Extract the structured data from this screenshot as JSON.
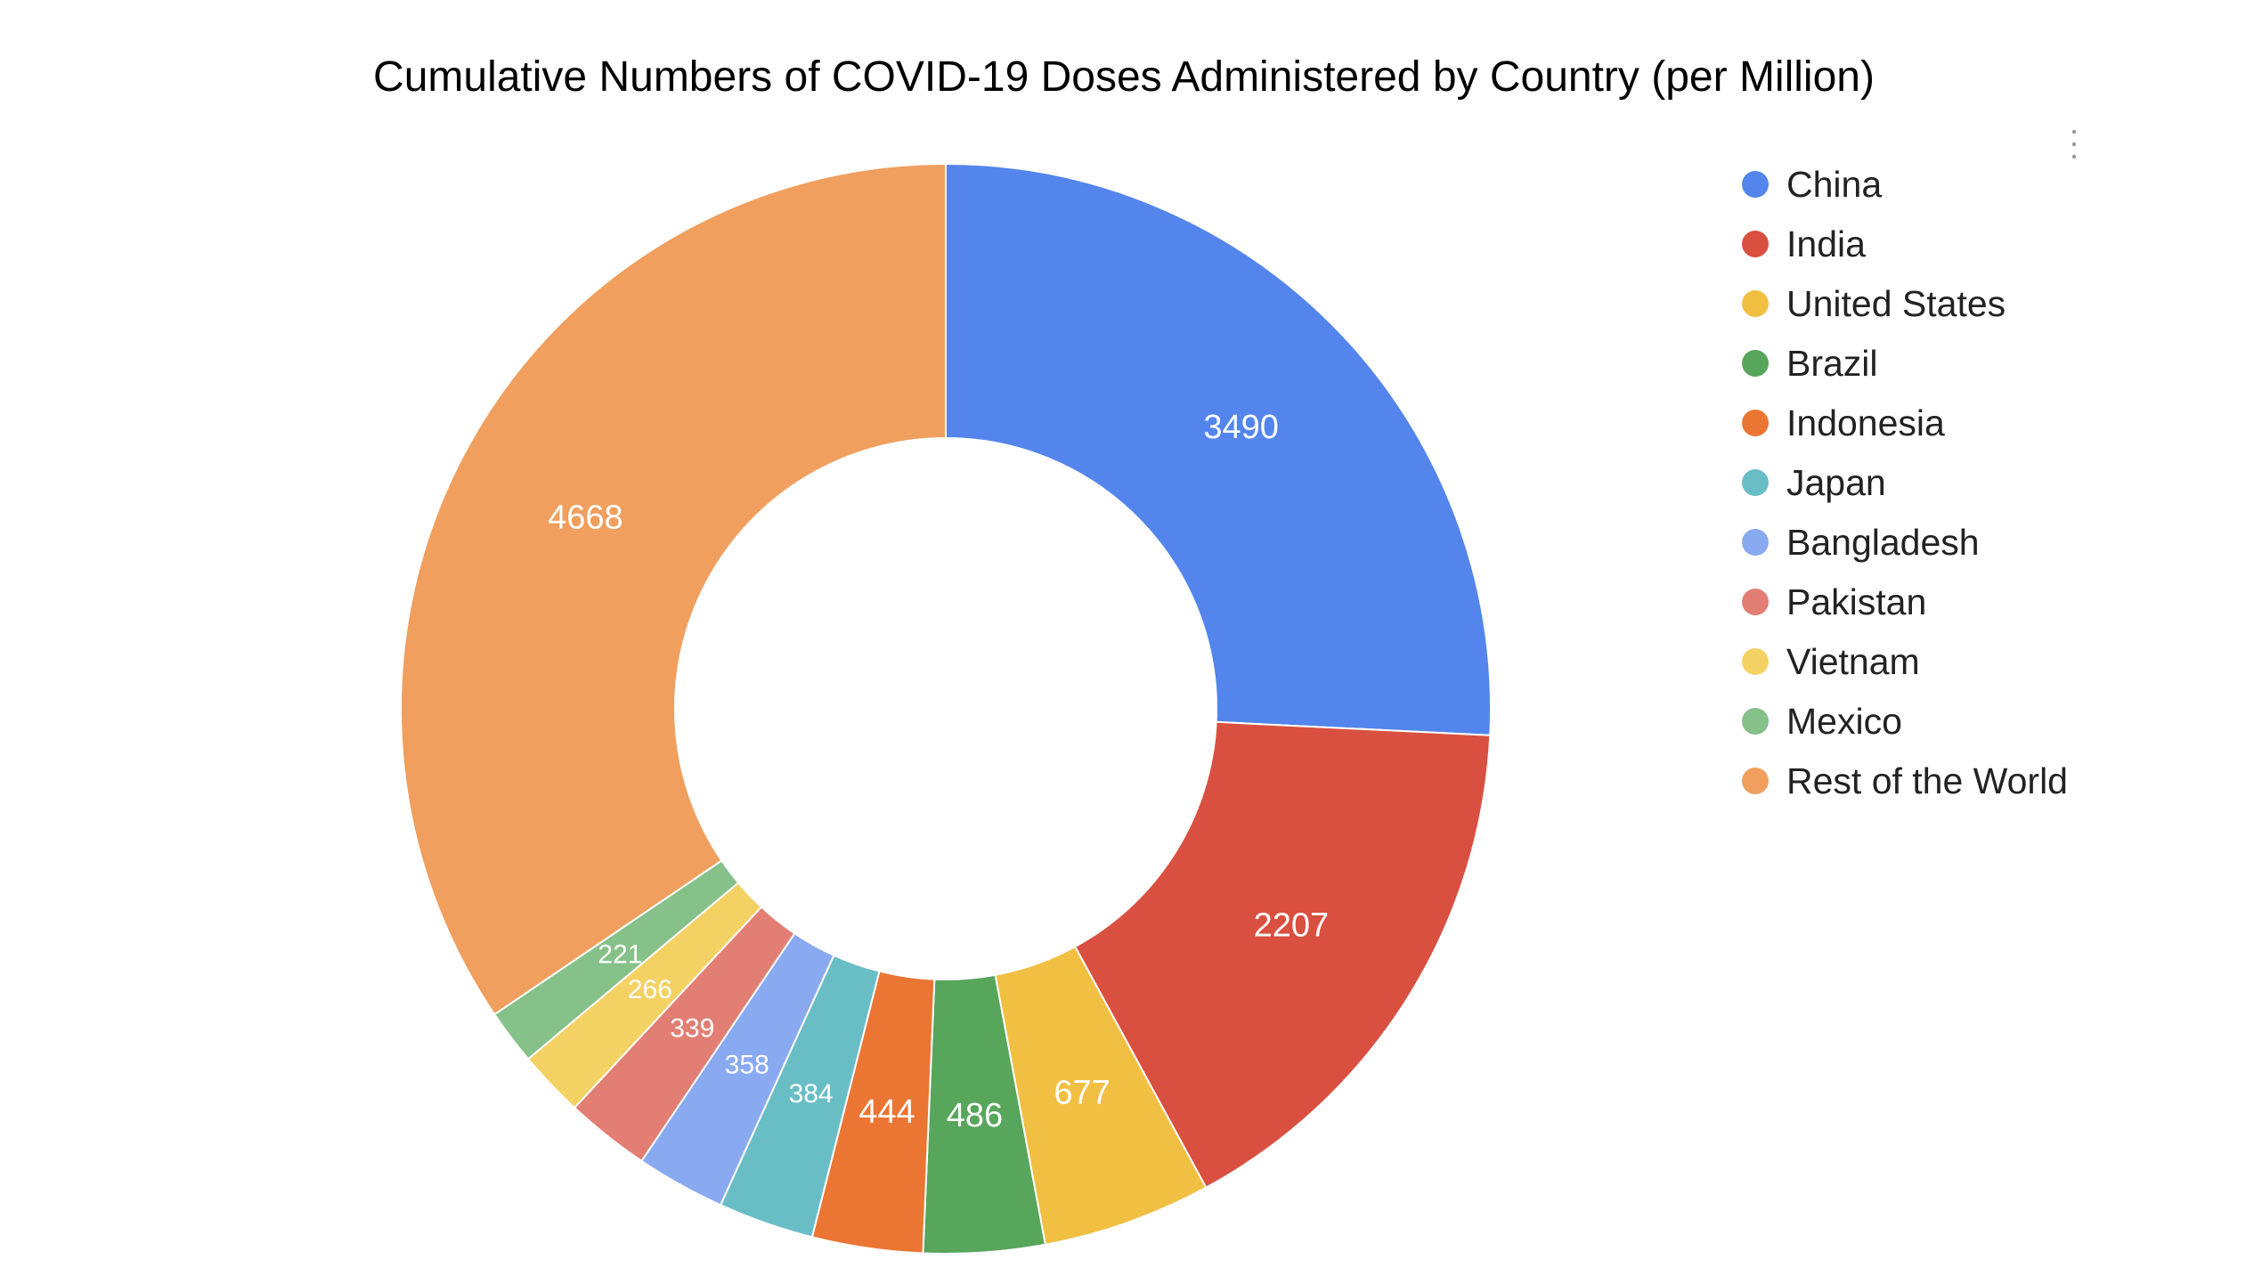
{
  "chart_data": {
    "type": "pie",
    "title": "Cumulative Numbers of COVID-19 Doses Administered by Country (per Million)",
    "donut": true,
    "legend_position": "right",
    "slices": [
      {
        "label": "China",
        "value": 3490,
        "color": "#5385EC"
      },
      {
        "label": "India",
        "value": 2207,
        "color": "#D95040"
      },
      {
        "label": "United States",
        "value": 677,
        "color": "#F1BF42"
      },
      {
        "label": "Brazil",
        "value": 486,
        "color": "#58A55C"
      },
      {
        "label": "Indonesia",
        "value": 444,
        "color": "#EB7533"
      },
      {
        "label": "Japan",
        "value": 384,
        "color": "#69BEC6"
      },
      {
        "label": "Bangladesh",
        "value": 358,
        "color": "#89A9F0"
      },
      {
        "label": "Pakistan",
        "value": 339,
        "color": "#E27E73"
      },
      {
        "label": "Vietnam",
        "value": 266,
        "color": "#F4D163"
      },
      {
        "label": "Mexico",
        "value": 221,
        "color": "#86C18A"
      },
      {
        "label": "Rest of the World",
        "value": 4668,
        "color": "#F09F5E"
      }
    ]
  }
}
